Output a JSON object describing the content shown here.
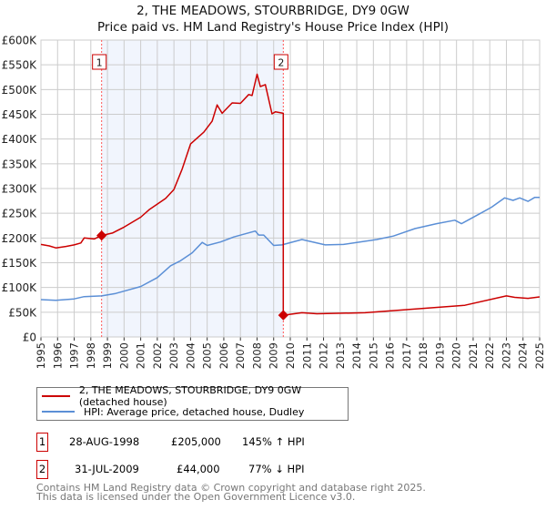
{
  "chart_data": {
    "type": "line",
    "title": "2, THE MEADOWS, STOURBRIDGE, DY9 0GW",
    "subtitle": "Price paid vs. HM Land Registry's House Price Index (HPI)",
    "xlim": [
      1995,
      2025
    ],
    "ylim": [
      0,
      600000
    ],
    "x_ticks": [
      "1995",
      "1996",
      "1997",
      "1998",
      "1999",
      "2000",
      "2001",
      "2002",
      "2003",
      "2004",
      "2005",
      "2006",
      "2007",
      "2008",
      "2009",
      "2010",
      "2011",
      "2012",
      "2013",
      "2014",
      "2015",
      "2016",
      "2017",
      "2018",
      "2019",
      "2020",
      "2021",
      "2022",
      "2023",
      "2024",
      "2025"
    ],
    "y_ticks": [
      {
        "v": 0,
        "label": "£0"
      },
      {
        "v": 50000,
        "label": "£50K"
      },
      {
        "v": 100000,
        "label": "£100K"
      },
      {
        "v": 150000,
        "label": "£150K"
      },
      {
        "v": 200000,
        "label": "£200K"
      },
      {
        "v": 250000,
        "label": "£250K"
      },
      {
        "v": 300000,
        "label": "£300K"
      },
      {
        "v": 350000,
        "label": "£350K"
      },
      {
        "v": 400000,
        "label": "£400K"
      },
      {
        "v": 450000,
        "label": "£450K"
      },
      {
        "v": 500000,
        "label": "£500K"
      },
      {
        "v": 550000,
        "label": "£550K"
      },
      {
        "v": 600000,
        "label": "£600K"
      }
    ],
    "grid": true,
    "shaded_range": [
      1998.65,
      2009.58
    ],
    "series": [
      {
        "name": "2, THE MEADOWS, STOURBRIDGE, DY9 0GW (detached house)",
        "color": "#cc0000",
        "x": [
          1995,
          1995.5,
          1995.9,
          1996.5,
          1997.0,
          1997.4,
          1997.6,
          1998.2,
          1998.65,
          1999.3,
          2000.0,
          2001.0,
          2001.5,
          2002.5,
          2003.0,
          2003.5,
          2004.0,
          2004.8,
          2005.3,
          2005.6,
          2005.9,
          2006.5,
          2007.0,
          2007.5,
          2007.7,
          2008.0,
          2008.2,
          2008.5,
          2008.9,
          2009.1,
          2009.58,
          2009.58,
          2010.7,
          2011.6,
          2014.5,
          2018.1,
          2020.5,
          2023.0,
          2023.5,
          2024.3,
          2025.0
        ],
        "y": [
          187000,
          184000,
          180000,
          183000,
          186000,
          190000,
          200000,
          198000,
          205000,
          210000,
          222000,
          242000,
          257000,
          280000,
          298000,
          340000,
          390000,
          414000,
          436000,
          469000,
          452000,
          473000,
          472000,
          490000,
          488000,
          531000,
          506000,
          510000,
          451000,
          455000,
          452000,
          44000,
          49000,
          47000,
          49000,
          58000,
          64000,
          83000,
          80000,
          78000,
          81000
        ]
      },
      {
        "name": "HPI: Average price, detached house, Dudley",
        "color": "#5b8fd6",
        "x": [
          1995,
          1995.9,
          1997.0,
          1997.6,
          1998.65,
          1999.5,
          2000.0,
          2001.0,
          2002.0,
          2002.8,
          2003.4,
          2004.1,
          2004.7,
          2005.0,
          2005.8,
          2006.6,
          2007.9,
          2008.1,
          2008.4,
          2009.0,
          2009.5,
          2010.7,
          2012.1,
          2013.2,
          2015.2,
          2016.2,
          2017.5,
          2018.8,
          2019.9,
          2020.3,
          2021.4,
          2022.1,
          2022.9,
          2023.4,
          2023.8,
          2024.3,
          2024.7,
          2025.0
        ],
        "y": [
          75500,
          74000,
          77000,
          81500,
          83000,
          88000,
          92600,
          102000,
          120000,
          144000,
          154000,
          170000,
          191000,
          185000,
          192000,
          202000,
          214000,
          206000,
          206000,
          185000,
          186000,
          197000,
          186000,
          187000,
          197000,
          204000,
          219000,
          229000,
          236000,
          229000,
          249000,
          262000,
          281000,
          276000,
          281000,
          274000,
          282000,
          282000
        ]
      }
    ],
    "sales": [
      {
        "id": "1",
        "x": 1998.65,
        "y": 205000
      },
      {
        "id": "2",
        "x": 2009.58,
        "y": 44000
      }
    ],
    "legend_placement": "below"
  },
  "header": {
    "line1": "2, THE MEADOWS, STOURBRIDGE, DY9 0GW",
    "line2": "Price paid vs. HM Land Registry's House Price Index (HPI)"
  },
  "legend": {
    "property": "2, THE MEADOWS, STOURBRIDGE, DY9 0GW (detached house)",
    "hpi": "HPI: Average price, detached house, Dudley"
  },
  "sales_table": [
    {
      "id": "1",
      "date": "28-AUG-1998",
      "price": "£205,000",
      "hpi": "145% ↑ HPI"
    },
    {
      "id": "2",
      "date": "31-JUL-2009",
      "price": "£44,000",
      "hpi": "77% ↓ HPI"
    }
  ],
  "footer": {
    "line1": "Contains HM Land Registry data © Crown copyright and database right 2025.",
    "line2": "This data is licensed under the Open Government Licence v3.0."
  }
}
